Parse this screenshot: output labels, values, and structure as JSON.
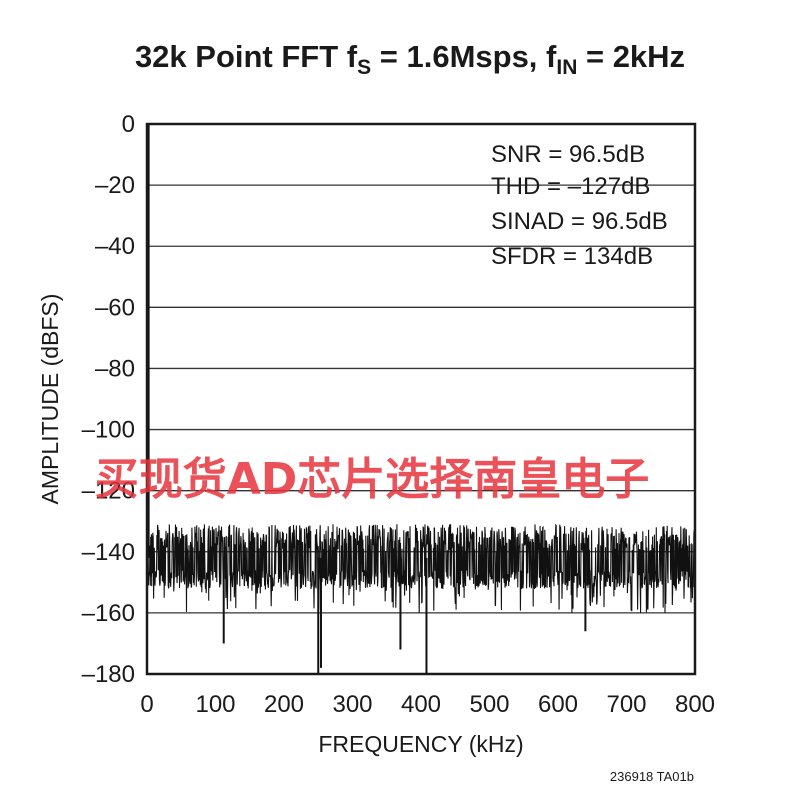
{
  "chart_data": {
    "type": "line",
    "title": {
      "main": "32k Point FFT f",
      "fs_sub": "S",
      "fs_value": " = 1.6Msps, f",
      "fin_sub": "IN",
      "fin_value": " = 2kHz"
    },
    "xlabel": "FREQUENCY (kHz)",
    "ylabel": "AMPLITUDE (dBFS)",
    "xlim": [
      0,
      800
    ],
    "ylim": [
      -180,
      0
    ],
    "xticks": [
      0,
      100,
      200,
      300,
      400,
      500,
      600,
      700,
      800
    ],
    "yticks": [
      0,
      -20,
      -40,
      -60,
      -80,
      -100,
      -120,
      -140,
      -160,
      -180
    ],
    "xtick_labels": [
      "0",
      "100",
      "200",
      "300",
      "400",
      "500",
      "600",
      "700",
      "800"
    ],
    "ytick_labels": [
      "0",
      "–20",
      "–40",
      "–60",
      "–80",
      "–100",
      "–120",
      "–140",
      "–160",
      "–180"
    ],
    "grid": "horizontal",
    "series": [
      {
        "signal_peak": {
          "x": 2,
          "y": 0
        },
        "noise_floor": {
          "x_range": [
            0,
            800
          ],
          "y_top": -131,
          "y_mid": -142,
          "y_bottom": -160
        },
        "deep_spurs_down": [
          {
            "x": 250,
            "y": -180
          },
          {
            "x": 254,
            "y": -178
          },
          {
            "x": 370,
            "y": -172
          },
          {
            "x": 408,
            "y": -180
          },
          {
            "x": 112,
            "y": -170
          },
          {
            "x": 640,
            "y": -166
          }
        ]
      }
    ],
    "annotations": [
      "SNR = 96.5dB",
      "THD = –127dB",
      "SINAD = 96.5dB",
      "SFDR = 134dB"
    ]
  },
  "figure_id": "236918 TA01b",
  "watermark": "买现货AD芯片选择南皇电子",
  "colors": {
    "trace": "#111111",
    "grid": "#333333",
    "watermark": "#e8323c"
  }
}
